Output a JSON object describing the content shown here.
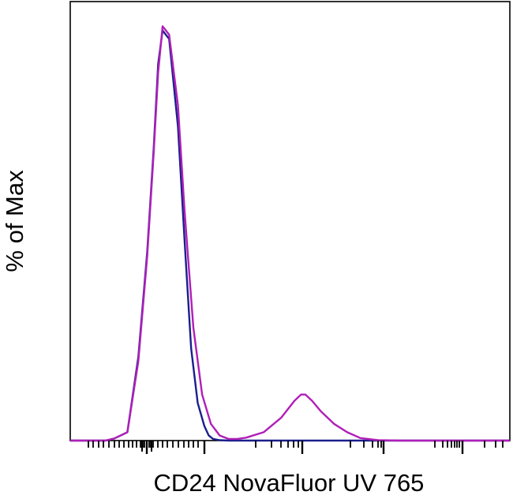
{
  "chart_data": {
    "type": "line",
    "title": "",
    "xlabel": "CD24 NovaFluor UV 765",
    "ylabel": "% of Max",
    "xscale": "biexponential",
    "x_tick_labels": [],
    "y_tick_labels": [],
    "xlim": [
      0,
      1
    ],
    "ylim": [
      0,
      100
    ],
    "grid": false,
    "legend": "none",
    "series": [
      {
        "color": "#1a1f8c",
        "x": [
          0.0,
          0.05,
          0.08,
          0.1,
          0.13,
          0.155,
          0.175,
          0.19,
          0.2,
          0.21,
          0.225,
          0.245,
          0.26,
          0.275,
          0.29,
          0.305,
          0.315,
          0.325,
          0.34,
          0.36,
          0.4,
          0.5,
          0.6,
          0.7,
          0.8,
          0.9,
          1.0
        ],
        "y": [
          0,
          0,
          0,
          0.5,
          2,
          20,
          45,
          70,
          90,
          98,
          96,
          75,
          48,
          22,
          9,
          3.5,
          1.2,
          0.4,
          0.1,
          0,
          0,
          0,
          0,
          0,
          0,
          0,
          0
        ]
      },
      {
        "color": "#b01fb8",
        "x": [
          0.0,
          0.05,
          0.08,
          0.1,
          0.13,
          0.155,
          0.175,
          0.19,
          0.2,
          0.21,
          0.225,
          0.245,
          0.26,
          0.28,
          0.3,
          0.32,
          0.34,
          0.36,
          0.38,
          0.4,
          0.44,
          0.48,
          0.51,
          0.525,
          0.535,
          0.55,
          0.57,
          0.6,
          0.63,
          0.66,
          0.7,
          0.75,
          0.8,
          0.9,
          1.0
        ],
        "y": [
          0,
          0,
          0,
          0.5,
          2,
          19,
          44,
          69,
          88,
          99,
          97,
          80,
          55,
          27,
          11,
          4,
          1.2,
          0.4,
          0.4,
          0.7,
          2,
          5.5,
          9.5,
          11,
          11,
          9.5,
          7,
          4,
          2,
          0.6,
          0.1,
          0,
          0,
          0,
          0
        ]
      }
    ]
  }
}
